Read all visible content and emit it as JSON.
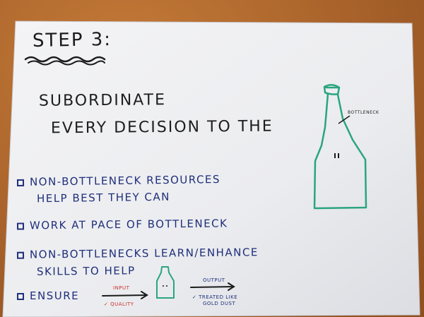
{
  "step_title": "Step 3:",
  "heading": {
    "line1": "Subordinate",
    "line2": "Every decision to the"
  },
  "bottle_label": "Bottleneck",
  "checklist": [
    {
      "line1": "Non-bottleneck resources",
      "line2": "help best they can"
    },
    {
      "line1": "Work at pace of bottleneck"
    },
    {
      "line1": "Non-bottlenecks learn/enhance",
      "line2": "skills to help"
    },
    {
      "line1": "Ensure"
    }
  ],
  "ensure_flow": {
    "input_label": "Input",
    "input_note": "✓ Quality",
    "output_label": "Output",
    "output_note_line1": "✓ Treated like",
    "output_note_line2": "gold dust"
  },
  "colors": {
    "ink_black": "#1e1e1e",
    "ink_blue": "#1f2f7a",
    "ink_green": "#2aa57f",
    "ink_red": "#c8312f",
    "paper": "#eeeff3",
    "table": "#a8622a"
  }
}
